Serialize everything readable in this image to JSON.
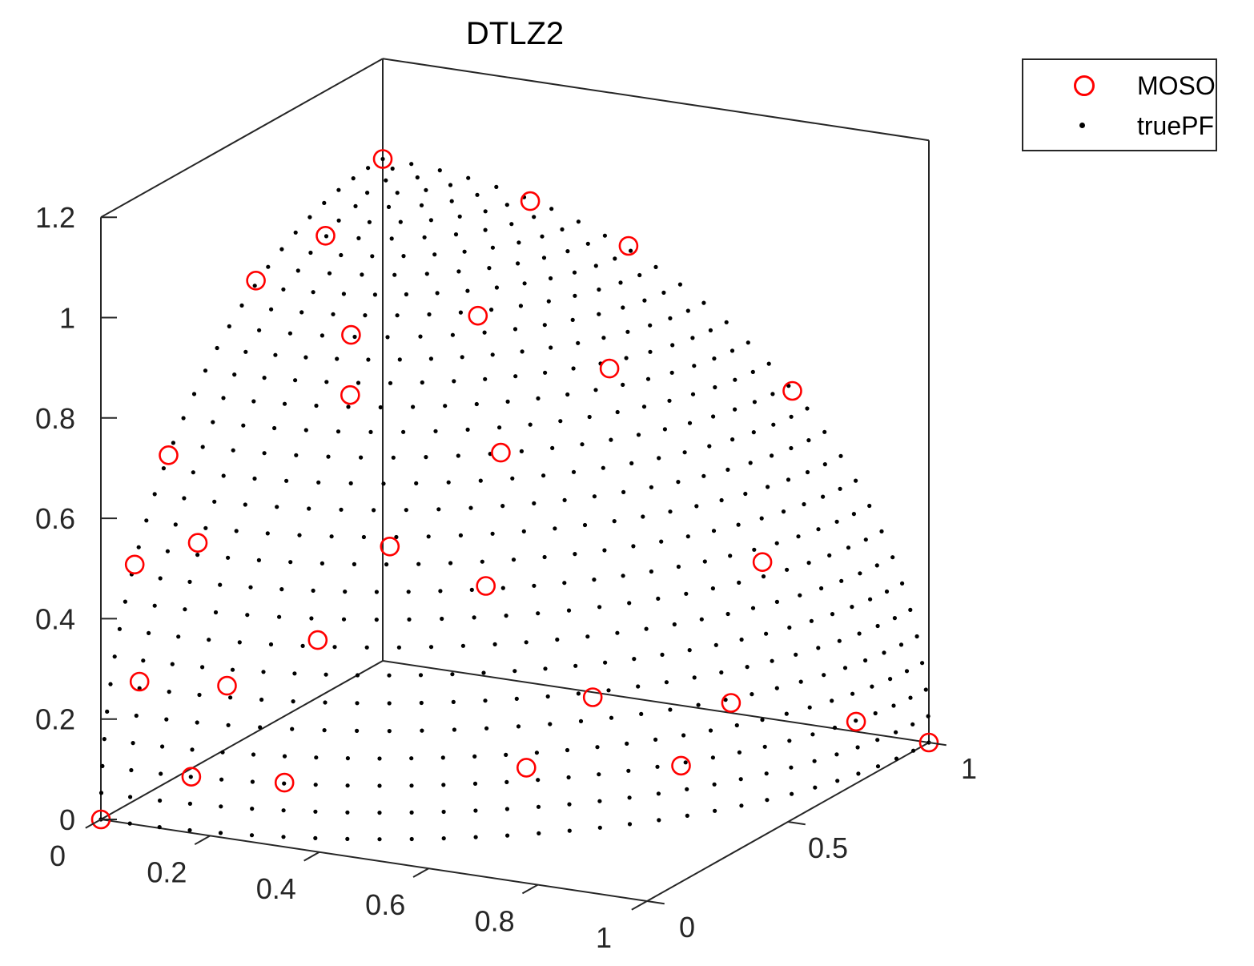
{
  "chart_data": {
    "type": "scatter",
    "title": "DTLZ2",
    "xlabel": "",
    "ylabel": "",
    "zlabel": "",
    "xlim": [
      0,
      1
    ],
    "ylim": [
      0,
      1
    ],
    "zlim": [
      0,
      1.2
    ],
    "xticks": [
      "0",
      "0.2",
      "0.4",
      "0.6",
      "0.8",
      "1"
    ],
    "yticks": [
      "0",
      "0.5",
      "1"
    ],
    "zticks": [
      "0",
      "0.2",
      "0.4",
      "0.6",
      "0.8",
      "1",
      "1.2"
    ],
    "grid": false,
    "legend_position": "top-right, outside axes",
    "legend": [
      {
        "name": "MOSO",
        "marker": "open-circle",
        "color": "#ff0000"
      },
      {
        "name": "truePF",
        "marker": "dot",
        "color": "#000000"
      }
    ],
    "series": [
      {
        "name": "truePF",
        "type": "surface-sample",
        "surface": "unit sphere octant x^2+y^2+z^2=1, x,y,z>=0",
        "color": "#000000"
      },
      {
        "name": "MOSO",
        "color": "#ff0000",
        "points": [
          {
            "x": 0.0,
            "y": 0.0,
            "z": 1.0
          },
          {
            "x": 1.0,
            "y": 0.0,
            "z": 0.0
          },
          {
            "x": 0.0,
            "y": 1.0,
            "z": 0.0
          },
          {
            "x": 0.45,
            "y": 0.0,
            "z": 0.9
          },
          {
            "x": 0.0,
            "y": 0.45,
            "z": 0.9
          },
          {
            "x": 0.3,
            "y": 0.05,
            "z": 0.95
          },
          {
            "x": 0.0,
            "y": 0.27,
            "z": 0.96
          },
          {
            "x": 0.76,
            "y": 0.0,
            "z": 0.65
          },
          {
            "x": 0.0,
            "y": 0.75,
            "z": 0.66
          },
          {
            "x": 0.88,
            "y": 0.0,
            "z": 0.47
          },
          {
            "x": 0.36,
            "y": 0.36,
            "z": 0.86
          },
          {
            "x": 0.3,
            "y": 0.57,
            "z": 0.77
          },
          {
            "x": 0.6,
            "y": 0.25,
            "z": 0.76
          },
          {
            "x": 0.55,
            "y": 0.5,
            "z": 0.67
          },
          {
            "x": 0.3,
            "y": 0.85,
            "z": 0.43
          },
          {
            "x": 0.7,
            "y": 0.55,
            "z": 0.46
          },
          {
            "x": 0.87,
            "y": 0.33,
            "z": 0.37
          },
          {
            "x": 0.85,
            "y": 0.1,
            "z": 0.52
          },
          {
            "x": 0.75,
            "y": 0.65,
            "z": 0.13
          },
          {
            "x": 0.94,
            "y": 0.2,
            "z": 0.28
          },
          {
            "x": 0.96,
            "y": 0.05,
            "z": 0.27
          },
          {
            "x": 0.45,
            "y": 0.87,
            "z": 0.2
          },
          {
            "x": 0.55,
            "y": 0.83,
            "z": 0.1
          },
          {
            "x": 0.65,
            "y": 0.72,
            "z": 0.25
          },
          {
            "x": 0.93,
            "y": 0.3,
            "z": 0.1
          },
          {
            "x": 0.97,
            "y": 0.15,
            "z": 0.1
          },
          {
            "x": 0.2,
            "y": 0.97,
            "z": 0.1
          },
          {
            "x": 0.75,
            "y": 0.4,
            "z": 0.53
          },
          {
            "x": 0.5,
            "y": 0.2,
            "z": 0.84
          }
        ]
      }
    ]
  }
}
